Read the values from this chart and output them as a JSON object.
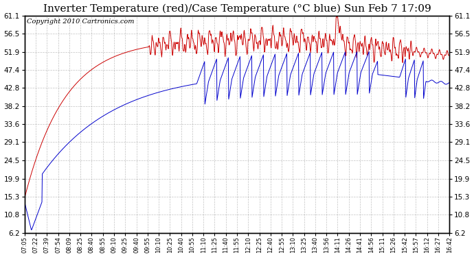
{
  "title": "Inverter Temperature (red)/Case Temperature (°C blue) Sun Feb 7 17:09",
  "copyright": "Copyright 2010 Cartronics.com",
  "background_color": "#ffffff",
  "plot_bg_color": "#ffffff",
  "grid_color": "#999999",
  "yticks": [
    6.2,
    10.8,
    15.3,
    19.9,
    24.5,
    29.1,
    33.6,
    38.2,
    42.8,
    47.4,
    51.9,
    56.5,
    61.1
  ],
  "xtick_labels": [
    "07:05",
    "07:22",
    "07:39",
    "07:54",
    "08:09",
    "08:25",
    "08:40",
    "08:55",
    "09:10",
    "09:25",
    "09:40",
    "09:55",
    "10:10",
    "10:25",
    "10:40",
    "10:55",
    "11:10",
    "11:25",
    "11:40",
    "11:55",
    "12:10",
    "12:25",
    "12:40",
    "12:55",
    "13:10",
    "13:25",
    "13:40",
    "13:56",
    "14:11",
    "14:26",
    "14:41",
    "14:56",
    "15:11",
    "15:26",
    "15:42",
    "15:57",
    "16:12",
    "16:27",
    "16:42"
  ],
  "ylim": [
    6.2,
    61.1
  ],
  "red_color": "#cc0000",
  "blue_color": "#0000cc",
  "title_fontsize": 11,
  "copyright_fontsize": 7
}
